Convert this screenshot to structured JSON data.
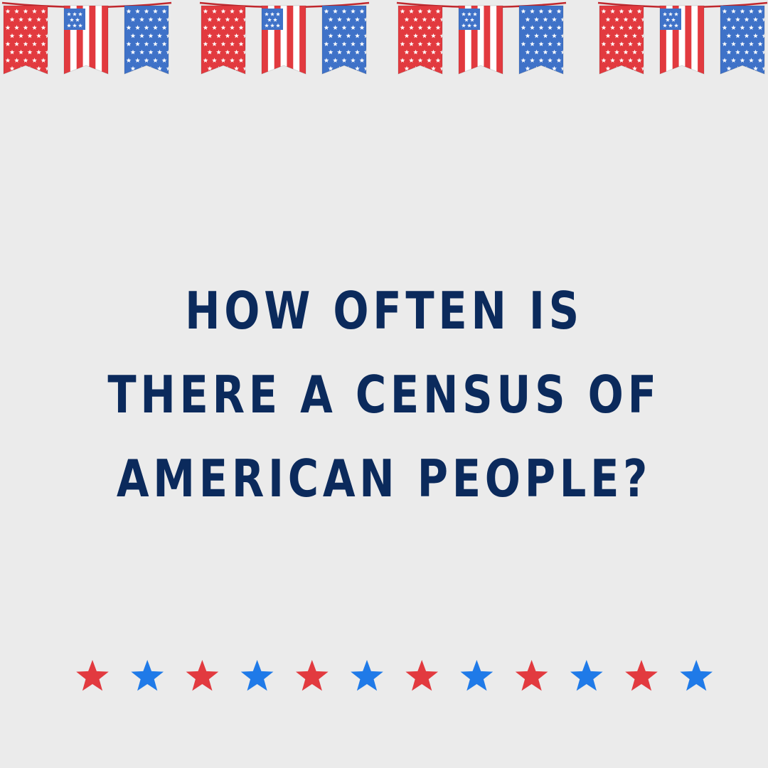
{
  "question": {
    "lines": [
      "HOW OFTEN IS",
      "THERE A CENSUS OF",
      "AMERICAN PEOPLE?"
    ]
  },
  "bunting": {
    "groups": 4,
    "pattern": [
      "red-stars-flag",
      "us-flag",
      "blue-stars-flag"
    ]
  },
  "star_row": {
    "colors": [
      "#e23a3f",
      "#1f7ae8",
      "#e23a3f",
      "#1f7ae8",
      "#e23a3f",
      "#1f7ae8",
      "#e23a3f",
      "#1f7ae8",
      "#e23a3f",
      "#1f7ae8",
      "#e23a3f",
      "#1f7ae8"
    ]
  },
  "palette": {
    "background": "#ebebeb",
    "text": "#0b2a5c",
    "flag_red": "#e23a3f",
    "flag_blue": "#3f72c8",
    "star_blue": "#1f7ae8"
  }
}
